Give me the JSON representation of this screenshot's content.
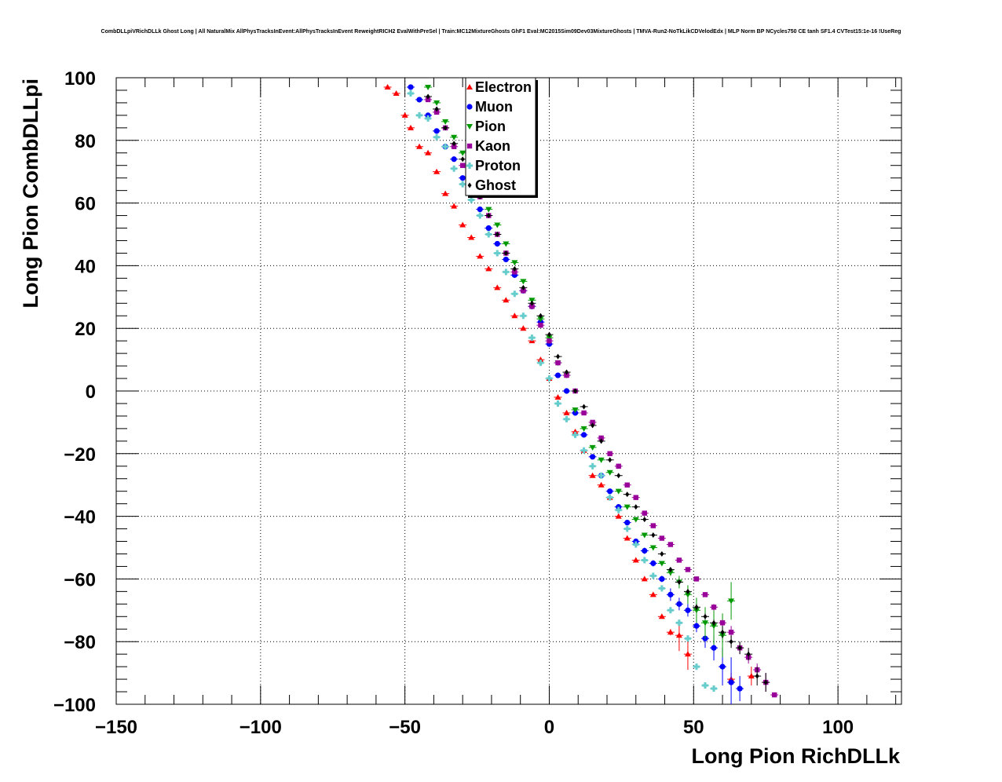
{
  "chart_data": {
    "type": "scatter",
    "title": "CombDLLpiVRichDLLk Ghost Long | All NaturalMix AllPhysTracksInEvent:AllPhysTracksInEvent ReweightRICH2 EvalWithPreSel | Train:MC12MixtureGhosts GhF1 Eval:MC2015Sim09Dev03MixtureGhosts | TMVA-Run2-NoTkLikCDVelodEdx | MLP Norm BP NCycles750 CE tanh SF1.4 CVTest15:1e-16 !UseReg",
    "xlabel": "Long Pion RichDLLk",
    "ylabel": "Long Pion CombDLLpi",
    "xlim": [
      -150,
      122
    ],
    "ylim": [
      -100,
      100
    ],
    "xticks": [
      -150,
      -100,
      -50,
      0,
      50,
      100
    ],
    "xtick_labels": [
      "−150",
      "−100",
      "−50",
      "0",
      "50",
      "100"
    ],
    "yticks": [
      -100,
      -80,
      -60,
      -40,
      -20,
      0,
      20,
      40,
      60,
      80,
      100
    ],
    "ytick_labels": [
      "−100",
      "−80",
      "−60",
      "−40",
      "−20",
      "0",
      "20",
      "40",
      "60",
      "80",
      "100"
    ],
    "grid": true,
    "legend_position": "top-center",
    "series": [
      {
        "name": "Electron",
        "color": "#ff0000",
        "marker": "triangle-up",
        "x": [
          -56,
          -53,
          -50,
          -48,
          -45,
          -42,
          -39,
          -36,
          -33,
          -30,
          -27,
          -24,
          -21,
          -18,
          -15,
          -12,
          -9,
          -6,
          -3,
          0,
          3,
          6,
          9,
          12,
          15,
          18,
          21,
          24,
          27,
          30,
          33,
          36,
          39,
          42,
          45,
          48,
          63,
          70
        ],
        "y": [
          97,
          95,
          88,
          84,
          78,
          76,
          70,
          63,
          59,
          53,
          49,
          43,
          39,
          33,
          29,
          24,
          20,
          16,
          10,
          4,
          -2,
          -7,
          -13,
          -19,
          -27,
          -30,
          -34,
          -40,
          -47,
          -54,
          -60,
          -65,
          -72,
          -77,
          -78,
          -84,
          -92,
          -91
        ],
        "yerr": [
          0,
          0,
          0,
          0,
          0,
          0,
          0,
          0,
          0,
          0,
          0,
          0,
          0,
          0,
          0,
          0,
          0,
          0,
          0,
          0,
          0,
          0,
          0,
          0,
          0,
          0,
          0,
          0,
          0,
          0,
          0,
          0,
          0,
          1,
          5,
          5,
          2,
          3
        ]
      },
      {
        "name": "Muon",
        "color": "#0000ff",
        "marker": "circle",
        "x": [
          -48,
          -45,
          -42,
          -39,
          -36,
          -33,
          -30,
          -27,
          -24,
          -21,
          -18,
          -15,
          -12,
          -9,
          -6,
          -3,
          0,
          3,
          6,
          9,
          12,
          15,
          18,
          21,
          24,
          27,
          30,
          33,
          36,
          39,
          42,
          45,
          48,
          51,
          54,
          57,
          60,
          63,
          66
        ],
        "y": [
          97,
          93,
          88,
          83,
          78,
          74,
          68,
          63,
          58,
          52,
          47,
          42,
          37,
          32,
          27,
          22,
          15,
          5,
          0,
          -7,
          -14,
          -21,
          -27,
          -32,
          -37,
          -42,
          -48,
          -51,
          -55,
          -60,
          -65,
          -68,
          -70,
          -75,
          -79,
          -82,
          -88,
          -93,
          -95
        ],
        "yerr": [
          0,
          0,
          0,
          0,
          0,
          0,
          0,
          0,
          0,
          0,
          0,
          0,
          0,
          0,
          0,
          0,
          0,
          0,
          0,
          0,
          0,
          0,
          0,
          0,
          0,
          0,
          0,
          1,
          1,
          1,
          2,
          2,
          2,
          2,
          3,
          4,
          6,
          8,
          4
        ]
      },
      {
        "name": "Pion",
        "color": "#009900",
        "marker": "triangle-down",
        "x": [
          -42,
          -39,
          -36,
          -33,
          -30,
          -27,
          -24,
          -21,
          -18,
          -15,
          -12,
          -9,
          -6,
          -3,
          0,
          3,
          6,
          9,
          12,
          15,
          18,
          21,
          24,
          27,
          30,
          33,
          36,
          39,
          42,
          45,
          48,
          51,
          54,
          57,
          60,
          63
        ],
        "y": [
          97,
          92,
          86,
          81,
          76,
          71,
          64,
          58,
          53,
          47,
          41,
          35,
          29,
          23,
          17,
          9,
          5,
          -6,
          -12,
          -18,
          -22,
          -26,
          -32,
          -37,
          -41,
          -46,
          -50,
          -55,
          -58,
          -61,
          -65,
          -70,
          -74,
          -75,
          -78,
          -67
        ],
        "yerr": [
          0,
          0,
          0,
          0,
          0,
          0,
          0,
          0,
          0,
          0,
          0,
          0,
          0,
          0,
          0,
          0,
          0,
          0,
          0,
          0,
          0,
          0,
          0,
          0,
          0,
          0,
          0,
          0,
          1,
          2,
          3,
          4,
          5,
          6,
          7,
          6
        ]
      },
      {
        "name": "Kaon",
        "color": "#990099",
        "marker": "square",
        "x": [
          -42,
          -39,
          -36,
          -33,
          -30,
          -27,
          -24,
          -21,
          -18,
          -15,
          -12,
          -9,
          -6,
          -3,
          0,
          3,
          6,
          9,
          12,
          15,
          18,
          21,
          24,
          27,
          30,
          33,
          36,
          39,
          42,
          45,
          48,
          51,
          54,
          57,
          60,
          63,
          66,
          69,
          72,
          75,
          78
        ],
        "y": [
          93,
          89,
          84,
          78,
          72,
          67,
          62,
          56,
          50,
          44,
          38,
          32,
          27,
          21,
          16,
          9,
          5,
          0,
          -7,
          -10,
          -15,
          -20,
          -24,
          -30,
          -34,
          -39,
          -43,
          -47,
          -49,
          -54,
          -57,
          -60,
          -65,
          -69,
          -74,
          -77,
          -82,
          -85,
          -89,
          -93,
          -97
        ],
        "yerr": [
          0,
          0,
          0,
          0,
          0,
          0,
          0,
          0,
          0,
          0,
          0,
          0,
          0,
          0,
          0,
          0,
          0,
          0,
          0,
          0,
          0,
          0,
          0,
          0,
          0,
          0,
          0,
          0,
          0,
          0,
          0,
          0,
          0,
          1,
          1,
          2,
          2,
          2,
          2,
          3,
          0
        ]
      },
      {
        "name": "Proton",
        "color": "#66cccc",
        "marker": "cross",
        "x": [
          -48,
          -45,
          -42,
          -39,
          -36,
          -33,
          -30,
          -27,
          -24,
          -21,
          -18,
          -15,
          -12,
          -9,
          -6,
          -3,
          0,
          3,
          6,
          9,
          12,
          15,
          18,
          21,
          24,
          27,
          30,
          33,
          36,
          39,
          42,
          45,
          48,
          51,
          54,
          57
        ],
        "y": [
          95,
          88,
          87,
          81,
          78,
          71,
          66,
          61,
          56,
          50,
          44,
          38,
          31,
          24,
          17,
          9,
          4,
          -4,
          -9,
          -14,
          -19,
          -24,
          -27,
          -34,
          -38,
          -44,
          -49,
          -54,
          -59,
          -63,
          -70,
          -74,
          -79,
          -88,
          -94,
          -95
        ],
        "yerr": [
          0,
          0,
          0,
          0,
          0,
          0,
          0,
          0,
          0,
          0,
          0,
          0,
          0,
          0,
          0,
          0,
          0,
          0,
          0,
          0,
          0,
          0,
          0,
          0,
          0,
          0,
          0,
          0,
          0,
          0,
          0,
          0,
          0,
          0,
          0,
          0
        ]
      },
      {
        "name": "Ghost",
        "color": "#000000",
        "marker": "diamond",
        "x": [
          -42,
          -39,
          -36,
          -33,
          -30,
          -27,
          -24,
          -21,
          -18,
          -15,
          -12,
          -9,
          -6,
          -3,
          0,
          3,
          6,
          9,
          12,
          15,
          18,
          21,
          24,
          27,
          30,
          33,
          36,
          39,
          42,
          45,
          48,
          51,
          54,
          57,
          60,
          63,
          66,
          69,
          72,
          75
        ],
        "y": [
          94,
          90,
          84,
          79,
          74,
          67,
          62,
          56,
          50,
          44,
          39,
          33,
          28,
          24,
          18,
          11,
          6,
          0,
          -5,
          -11,
          -16,
          -22,
          -27,
          -33,
          -37,
          -41,
          -46,
          -52,
          -57,
          -61,
          -64,
          -69,
          -72,
          -74,
          -77,
          -80,
          -82,
          -84,
          -91,
          -93
        ],
        "yerr": [
          0,
          0,
          0,
          0,
          0,
          0,
          0,
          0,
          0,
          0,
          0,
          0,
          0,
          0,
          0,
          0,
          0,
          0,
          0,
          0,
          0,
          0,
          0,
          0,
          0,
          0,
          0,
          0,
          0,
          0,
          0,
          1,
          1,
          1,
          2,
          2,
          2,
          2,
          3,
          3
        ]
      }
    ]
  }
}
